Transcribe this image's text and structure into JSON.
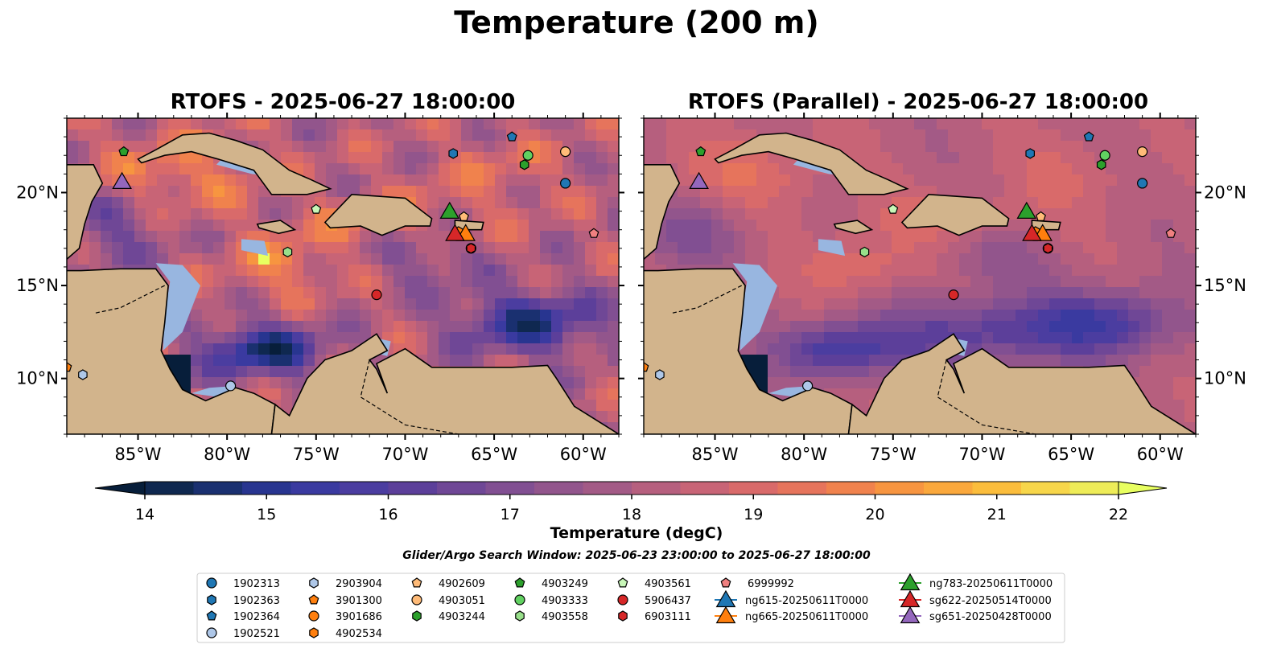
{
  "title": "Temperature (200 m)",
  "panels": [
    {
      "title": "RTOFS - 2025-06-27 18:00:00"
    },
    {
      "title": "RTOFS (Parallel) - 2025-06-27 18:00:00"
    }
  ],
  "map": {
    "lon_range": [
      -89,
      -58
    ],
    "lat_range": [
      7,
      24
    ],
    "lon_ticks": [
      -85,
      -80,
      -75,
      -70,
      -65,
      -60
    ],
    "lon_tick_labels": [
      "85°W",
      "80°W",
      "75°W",
      "70°W",
      "65°W",
      "60°W"
    ],
    "lat_ticks": [
      10,
      15,
      20
    ],
    "lat_tick_labels": [
      "10°N",
      "15°N",
      "20°N"
    ],
    "colors": {
      "land": "#d2b48c",
      "shelf": "#98b6e0",
      "deep": "#06203a"
    }
  },
  "colorbar": {
    "label": "Temperature (degC)",
    "min": 14,
    "max": 22,
    "step": 0.5,
    "ticks": [
      14,
      15,
      16,
      17,
      18,
      19,
      20,
      21,
      22
    ],
    "tick_labels": [
      "14",
      "15",
      "16",
      "17",
      "18",
      "19",
      "20",
      "21",
      "22"
    ],
    "colors": [
      "#0f2850",
      "#1a3070",
      "#283590",
      "#3a3aa0",
      "#4b3da0",
      "#5c3f9a",
      "#6f4796",
      "#814f92",
      "#92558c",
      "#a35a86",
      "#b65f7e",
      "#c86476",
      "#d96a6a",
      "#e6745c",
      "#f0824d",
      "#f79540",
      "#faa83c",
      "#fbbd3c",
      "#f7d64a",
      "#eeec58"
    ],
    "under_color": "#071e3a",
    "over_color": "#e8ff60"
  },
  "search_window": "Glider/Argo Search Window: 2025-06-23 23:00:00 to 2025-06-27 18:00:00",
  "legend": [
    {
      "label": "1902313",
      "marker": "circle",
      "color": "#1f77b4"
    },
    {
      "label": "1902363",
      "marker": "hexagon",
      "color": "#1f77b4"
    },
    {
      "label": "1902364",
      "marker": "pentagon",
      "color": "#1f77b4"
    },
    {
      "label": "1902521",
      "marker": "circle",
      "color": "#aec7e8"
    },
    {
      "label": "2903904",
      "marker": "hexagon",
      "color": "#aec7e8"
    },
    {
      "label": "3901300",
      "marker": "pentagon",
      "color": "#ff7f0e"
    },
    {
      "label": "3901686",
      "marker": "circle",
      "color": "#ff7f0e"
    },
    {
      "label": "4902534",
      "marker": "hexagon",
      "color": "#ff7f0e"
    },
    {
      "label": "4902609",
      "marker": "pentagon",
      "color": "#ffbb78"
    },
    {
      "label": "4903051",
      "marker": "circle",
      "color": "#ffbb78"
    },
    {
      "label": "4903244",
      "marker": "hexagon",
      "color": "#2ca02c"
    },
    {
      "label": "4903249",
      "marker": "pentagon",
      "color": "#2ca02c"
    },
    {
      "label": "4903333",
      "marker": "circle",
      "color": "#61d161"
    },
    {
      "label": "4903558",
      "marker": "hexagon",
      "color": "#98df8a"
    },
    {
      "label": "4903561",
      "marker": "pentagon",
      "color": "#c8f7b8"
    },
    {
      "label": "5906437",
      "marker": "circle",
      "color": "#d62728"
    },
    {
      "label": "6903111",
      "marker": "hexagon",
      "color": "#d62728"
    },
    {
      "label": "6999992",
      "marker": "pentagon",
      "color": "#f08080"
    },
    {
      "label": "ng615-20250611T0000",
      "marker": "triangle",
      "color": "#1f77b4"
    },
    {
      "label": "ng665-20250611T0000",
      "marker": "triangle",
      "color": "#ff7f0e"
    },
    {
      "label": "ng783-20250611T0000",
      "marker": "triangle",
      "color": "#2ca02c"
    },
    {
      "label": "sg622-20250514T0000",
      "marker": "triangle",
      "color": "#d62728"
    },
    {
      "label": "sg651-20250428T0000",
      "marker": "triangle",
      "color": "#9467bd"
    }
  ],
  "observations": [
    {
      "id": "1902313",
      "lon": -61.0,
      "lat": 20.5
    },
    {
      "id": "1902363",
      "lon": -67.3,
      "lat": 22.1
    },
    {
      "id": "1902364",
      "lon": -64.0,
      "lat": 23.0
    },
    {
      "id": "1902521",
      "lon": -79.8,
      "lat": 9.6
    },
    {
      "id": "2903904",
      "lon": -88.1,
      "lat": 10.2
    },
    {
      "id": "3901300",
      "lon": -89.0,
      "lat": 10.6
    },
    {
      "id": "3901686",
      "lon": -66.3,
      "lat": 17.0
    },
    {
      "id": "4902534",
      "lon": -67.0,
      "lat": 17.9
    },
    {
      "id": "4902609",
      "lon": -66.7,
      "lat": 18.7
    },
    {
      "id": "4903051",
      "lon": -61.0,
      "lat": 22.2
    },
    {
      "id": "4903244",
      "lon": -63.3,
      "lat": 21.5
    },
    {
      "id": "4903249",
      "lon": -85.8,
      "lat": 22.2
    },
    {
      "id": "4903333",
      "lon": -63.1,
      "lat": 22.0
    },
    {
      "id": "4903558",
      "lon": -76.6,
      "lat": 16.8
    },
    {
      "id": "4903561",
      "lon": -75.0,
      "lat": 19.1
    },
    {
      "id": "5906437",
      "lon": -71.6,
      "lat": 14.5
    },
    {
      "id": "6903111",
      "lon": -66.3,
      "lat": 17.0
    },
    {
      "id": "6999992",
      "lon": -59.4,
      "lat": 17.8
    },
    {
      "id": "ng665-20250611T0000",
      "lon": -66.6,
      "lat": 17.7
    },
    {
      "id": "ng783-20250611T0000",
      "lon": -67.5,
      "lat": 18.9
    },
    {
      "id": "sg622-20250514T0000",
      "lon": -67.2,
      "lat": 17.7
    },
    {
      "id": "sg651-20250428T0000",
      "lon": -85.9,
      "lat": 20.5
    }
  ]
}
